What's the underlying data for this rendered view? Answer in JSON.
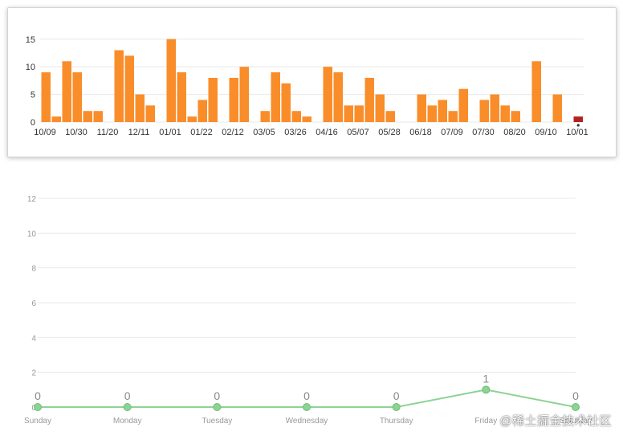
{
  "colors": {
    "bar": "#f98d2a",
    "bar_highlight": "#b22222",
    "line": "#8cd394",
    "point": "#8cd394",
    "grid": "#e8e8e8",
    "tick_text": "#333333",
    "tick_text_light": "#999999",
    "label_text": "#888888"
  },
  "chart_data": [
    {
      "type": "bar",
      "title": "",
      "xlabel": "",
      "ylabel": "",
      "ylim": [
        0,
        17
      ],
      "yticks": [
        0,
        5,
        10,
        15
      ],
      "grid": true,
      "values": [
        9,
        1,
        11,
        9,
        2,
        2,
        null,
        13,
        12,
        5,
        3,
        null,
        15,
        9,
        1,
        4,
        8,
        null,
        8,
        10,
        null,
        2,
        9,
        7,
        2,
        1,
        null,
        10,
        9,
        3,
        3,
        8,
        5,
        2,
        null,
        null,
        5,
        3,
        4,
        2,
        6,
        null,
        4,
        5,
        3,
        2,
        null,
        11,
        null,
        5,
        null,
        1
      ],
      "highlight_index": 51,
      "x_tick_labels": [
        "10/09",
        "10/30",
        "11/20",
        "12/11",
        "01/01",
        "01/22",
        "02/12",
        "03/05",
        "03/26",
        "04/16",
        "05/07",
        "05/28",
        "06/18",
        "07/09",
        "07/30",
        "08/20",
        "09/10",
        "10/01"
      ]
    },
    {
      "type": "line",
      "title": "",
      "xlabel": "",
      "ylabel": "",
      "ylim": [
        0,
        12
      ],
      "yticks": [
        0,
        2,
        4,
        6,
        8,
        10,
        12
      ],
      "grid": true,
      "categories": [
        "Sunday",
        "Monday",
        "Tuesday",
        "Wednesday",
        "Thursday",
        "Friday",
        "Saturday"
      ],
      "values": [
        0,
        0,
        0,
        0,
        0,
        1,
        0
      ],
      "data_labels": [
        "0",
        "0",
        "0",
        "0",
        "0",
        "1",
        "0"
      ]
    }
  ],
  "watermark": "@稀土掘金技术社区"
}
